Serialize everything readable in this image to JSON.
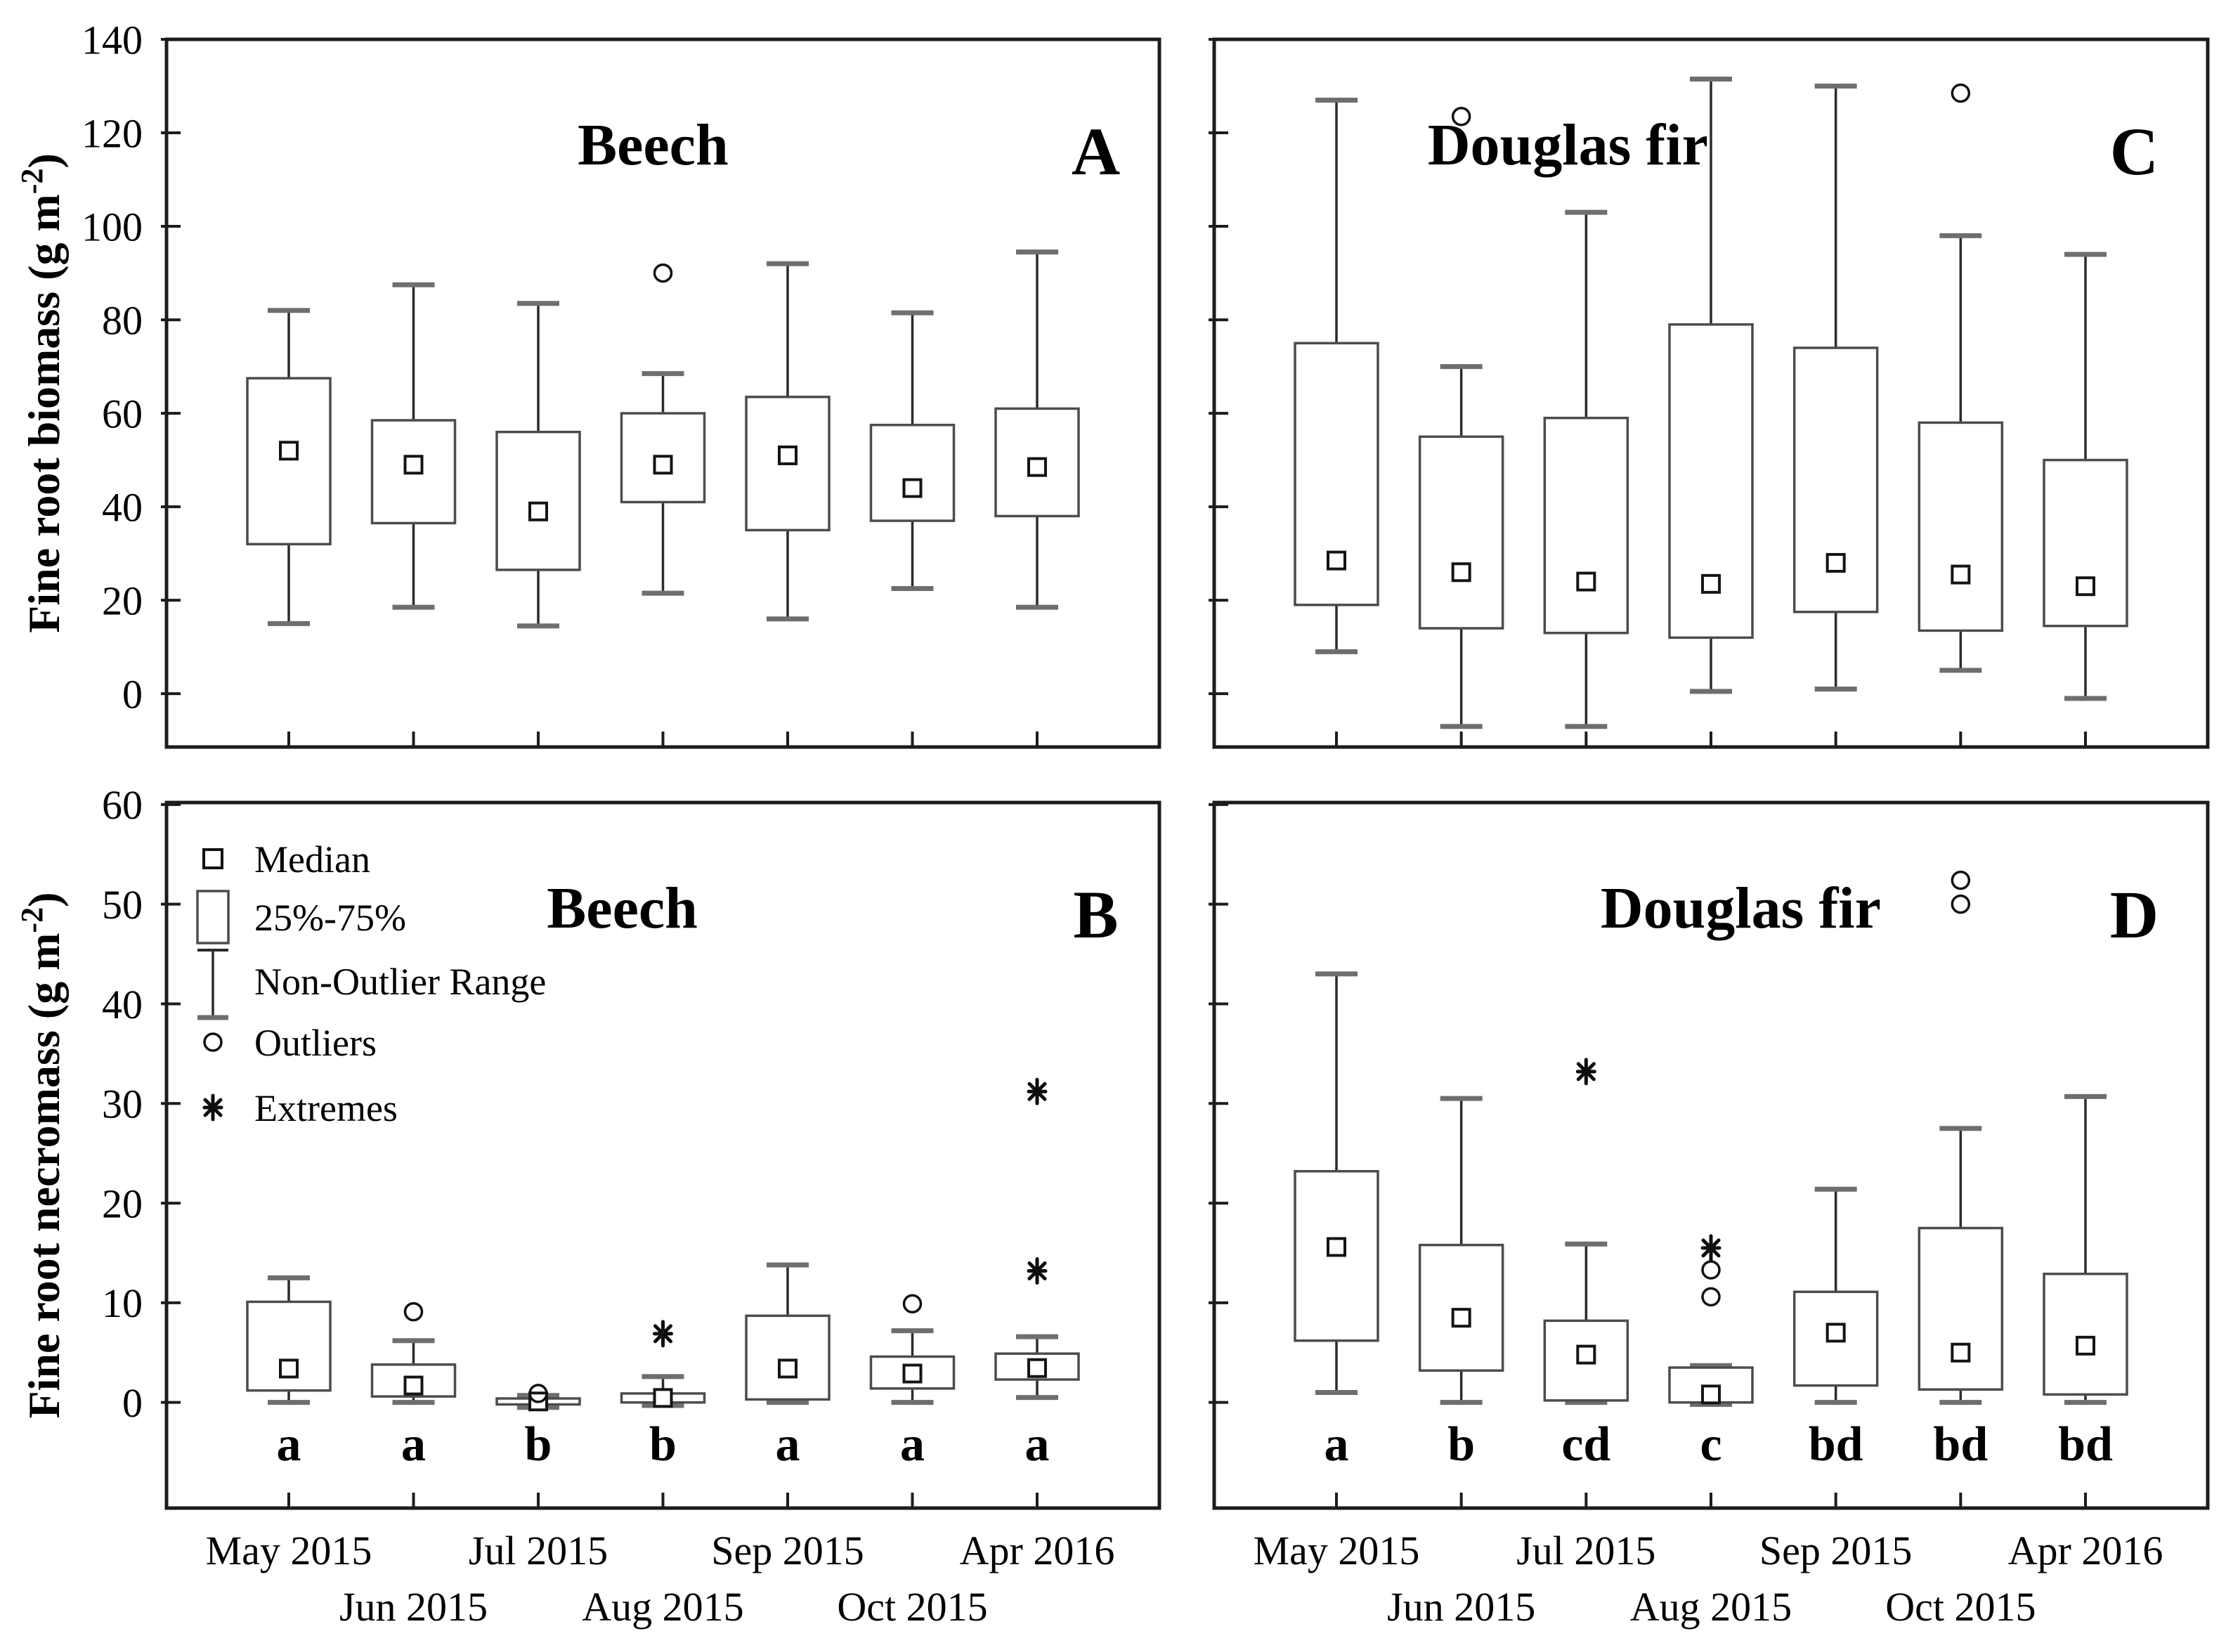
{
  "figure": {
    "background": "#ffffff",
    "frame_color": "#1c1c1c",
    "whisker_color": "#2b2b2b",
    "cap_color": "#6e6e6e",
    "box_stroke": "#4c4c4c",
    "median_color": "#141414"
  },
  "x_axis": {
    "categories": [
      "May 2015",
      "Jun 2015",
      "Jul 2015",
      "Aug 2015",
      "Sep 2015",
      "Oct 2015",
      "Apr 2016"
    ]
  },
  "legend": {
    "items": [
      {
        "symbol": "median-square",
        "label": "Median"
      },
      {
        "symbol": "box",
        "label": "25%-75%"
      },
      {
        "symbol": "whisker",
        "label": "Non-Outlier Range"
      },
      {
        "symbol": "circle",
        "label": "Outliers"
      },
      {
        "symbol": "star",
        "label": "Extremes"
      }
    ]
  },
  "chart_data": [
    {
      "id": "A",
      "type": "box",
      "title": "Beech",
      "panel_label": "A",
      "ylabel_prefix": "Fine root biomass (g m",
      "ylabel_sup": "-2",
      "ylabel_suffix": ")",
      "ylim": [
        -11.4,
        140
      ],
      "yticks": [
        0,
        20,
        40,
        60,
        80,
        100,
        120,
        140
      ],
      "boxes": [
        {
          "low": 15,
          "q1": 32,
          "median": 52,
          "q3": 67.5,
          "high": 82,
          "outliers": [],
          "extremes": []
        },
        {
          "low": 18.5,
          "q1": 36.5,
          "median": 49,
          "q3": 58.5,
          "high": 87.5,
          "outliers": [],
          "extremes": []
        },
        {
          "low": 14.5,
          "q1": 26.5,
          "median": 39,
          "q3": 56,
          "high": 83.5,
          "outliers": [],
          "extremes": []
        },
        {
          "low": 21.5,
          "q1": 41,
          "median": 49,
          "q3": 60,
          "high": 68.5,
          "outliers": [
            90
          ],
          "extremes": []
        },
        {
          "low": 16,
          "q1": 35,
          "median": 51,
          "q3": 63.5,
          "high": 92,
          "outliers": [],
          "extremes": []
        },
        {
          "low": 22.5,
          "q1": 37,
          "median": 44,
          "q3": 57.5,
          "high": 81.5,
          "outliers": [],
          "extremes": []
        },
        {
          "low": 18.5,
          "q1": 38,
          "median": 48.5,
          "q3": 61,
          "high": 94.5,
          "outliers": [],
          "extremes": []
        }
      ],
      "letters": []
    },
    {
      "id": "C",
      "type": "box",
      "title": "Douglas fir",
      "panel_label": "C",
      "ylim": [
        -11.4,
        140
      ],
      "yticks": [
        0,
        20,
        40,
        60,
        80,
        100,
        120,
        140
      ],
      "boxes": [
        {
          "low": 9,
          "q1": 19,
          "median": 28.5,
          "q3": 75,
          "high": 127,
          "outliers": [],
          "extremes": []
        },
        {
          "low": -7,
          "q1": 14,
          "median": 26,
          "q3": 55,
          "high": 70,
          "outliers": [
            123.5
          ],
          "extremes": []
        },
        {
          "low": -7,
          "q1": 13,
          "median": 24,
          "q3": 59,
          "high": 103,
          "outliers": [],
          "extremes": []
        },
        {
          "low": 0.5,
          "q1": 12,
          "median": 23.5,
          "q3": 79,
          "high": 131.5,
          "outliers": [],
          "extremes": []
        },
        {
          "low": 1,
          "q1": 17.5,
          "median": 28,
          "q3": 74,
          "high": 130,
          "outliers": [],
          "extremes": []
        },
        {
          "low": 5,
          "q1": 13.5,
          "median": 25.5,
          "q3": 58,
          "high": 98,
          "outliers": [
            128.5
          ],
          "extremes": []
        },
        {
          "low": -1,
          "q1": 14.5,
          "median": 23,
          "q3": 50,
          "high": 94,
          "outliers": [],
          "extremes": []
        }
      ],
      "letters": []
    },
    {
      "id": "B",
      "type": "box",
      "title": "Beech",
      "panel_label": "B",
      "ylabel_prefix": "Fine root necromass (g m",
      "ylabel_sup": "-2",
      "ylabel_suffix": ")",
      "ylim": [
        -10.6,
        60.2
      ],
      "yticks": [
        0,
        10,
        20,
        30,
        40,
        50,
        60
      ],
      "boxes": [
        {
          "low": 0,
          "q1": 1.2,
          "median": 3.4,
          "q3": 10.1,
          "high": 12.5,
          "outliers": [],
          "extremes": []
        },
        {
          "low": 0,
          "q1": 0.6,
          "median": 1.7,
          "q3": 3.8,
          "high": 6.2,
          "outliers": [
            9.1
          ],
          "extremes": []
        },
        {
          "low": -0.5,
          "q1": -0.2,
          "median": 0.1,
          "q3": 0.4,
          "high": 0.7,
          "outliers": [
            0.9
          ],
          "extremes": []
        },
        {
          "low": -0.3,
          "q1": 0,
          "median": 0.45,
          "q3": 0.9,
          "high": 2.6,
          "outliers": [],
          "extremes": [
            6.9
          ]
        },
        {
          "low": 0,
          "q1": 0.3,
          "median": 3.4,
          "q3": 8.7,
          "high": 13.8,
          "outliers": [],
          "extremes": []
        },
        {
          "low": 0,
          "q1": 1.4,
          "median": 2.9,
          "q3": 4.6,
          "high": 7.2,
          "outliers": [
            9.9
          ],
          "extremes": []
        },
        {
          "low": 0.5,
          "q1": 2.3,
          "median": 3.45,
          "q3": 4.9,
          "high": 6.6,
          "outliers": [],
          "extremes": [
            13.2,
            31.2
          ]
        }
      ],
      "letters": [
        "a",
        "a",
        "b",
        "b",
        "a",
        "a",
        "a"
      ]
    },
    {
      "id": "D",
      "type": "box",
      "title": "Douglas fir",
      "panel_label": "D",
      "ylim": [
        -10.6,
        60.2
      ],
      "yticks": [
        0,
        10,
        20,
        30,
        40,
        50,
        60
      ],
      "boxes": [
        {
          "low": 1,
          "q1": 6.2,
          "median": 15.6,
          "q3": 23.2,
          "high": 43,
          "outliers": [],
          "extremes": []
        },
        {
          "low": 0,
          "q1": 3.2,
          "median": 8.5,
          "q3": 15.8,
          "high": 30.5,
          "outliers": [],
          "extremes": []
        },
        {
          "low": 0,
          "q1": 0.2,
          "median": 4.8,
          "q3": 8.2,
          "high": 15.9,
          "outliers": [],
          "extremes": [
            33.2
          ]
        },
        {
          "low": -0.2,
          "q1": 0,
          "median": 0.8,
          "q3": 3.5,
          "high": 3.7,
          "outliers": [
            10.6,
            13.3
          ],
          "extremes": [
            15.5
          ]
        },
        {
          "low": 0,
          "q1": 1.7,
          "median": 7,
          "q3": 11.1,
          "high": 21.4,
          "outliers": [],
          "extremes": []
        },
        {
          "low": 0,
          "q1": 1.3,
          "median": 5,
          "q3": 17.5,
          "high": 27.5,
          "outliers": [
            50.0,
            52.4
          ],
          "extremes": []
        },
        {
          "low": 0,
          "q1": 0.8,
          "median": 5.7,
          "q3": 12.9,
          "high": 30.7,
          "outliers": [],
          "extremes": []
        }
      ],
      "letters": [
        "a",
        "b",
        "cd",
        "c",
        "bd",
        "bd",
        "bd"
      ]
    }
  ]
}
